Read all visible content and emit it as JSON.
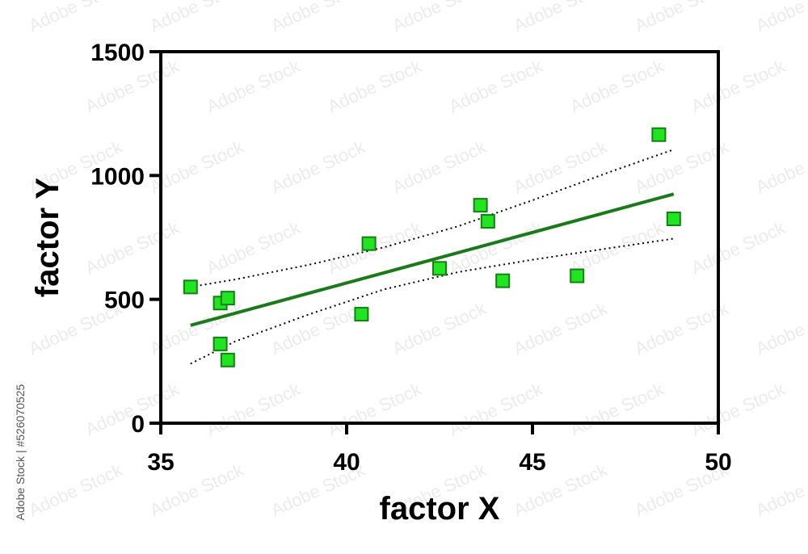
{
  "chart_data": {
    "type": "scatter",
    "xlabel": "factor X",
    "ylabel": "factor Y",
    "xlim": [
      35,
      50
    ],
    "ylim": [
      0,
      1500
    ],
    "x_ticks": [
      35,
      40,
      45,
      50
    ],
    "y_ticks": [
      0,
      500,
      1000,
      1500
    ],
    "grid": false,
    "legend": "none",
    "points": [
      {
        "x": 35.8,
        "y": 550
      },
      {
        "x": 36.6,
        "y": 485
      },
      {
        "x": 36.8,
        "y": 505
      },
      {
        "x": 36.6,
        "y": 320
      },
      {
        "x": 36.8,
        "y": 255
      },
      {
        "x": 40.4,
        "y": 440
      },
      {
        "x": 40.6,
        "y": 725
      },
      {
        "x": 42.5,
        "y": 625
      },
      {
        "x": 43.6,
        "y": 880
      },
      {
        "x": 43.8,
        "y": 815
      },
      {
        "x": 44.2,
        "y": 575
      },
      {
        "x": 46.2,
        "y": 595
      },
      {
        "x": 48.4,
        "y": 1165
      },
      {
        "x": 48.8,
        "y": 825
      }
    ],
    "fit_line": {
      "x": [
        35.8,
        48.8
      ],
      "y": [
        395,
        925
      ]
    },
    "ci_upper": {
      "x": [
        35.8,
        37,
        39,
        41,
        43,
        45,
        47,
        48.8
      ],
      "y": [
        550,
        580,
        640,
        710,
        795,
        900,
        1010,
        1105
      ]
    },
    "ci_lower": {
      "x": [
        35.8,
        37,
        39,
        41,
        43,
        45,
        47,
        48.8
      ],
      "y": [
        240,
        330,
        440,
        540,
        610,
        660,
        705,
        745
      ]
    },
    "colors": {
      "marker_fill": "#22e522",
      "marker_edge": "#128012",
      "fit_line": "#1a7a1a",
      "ci_line": "#000000",
      "axis": "#000000"
    }
  },
  "watermark": {
    "stock_id": "#526070525",
    "brand": "Adobe Stock"
  }
}
